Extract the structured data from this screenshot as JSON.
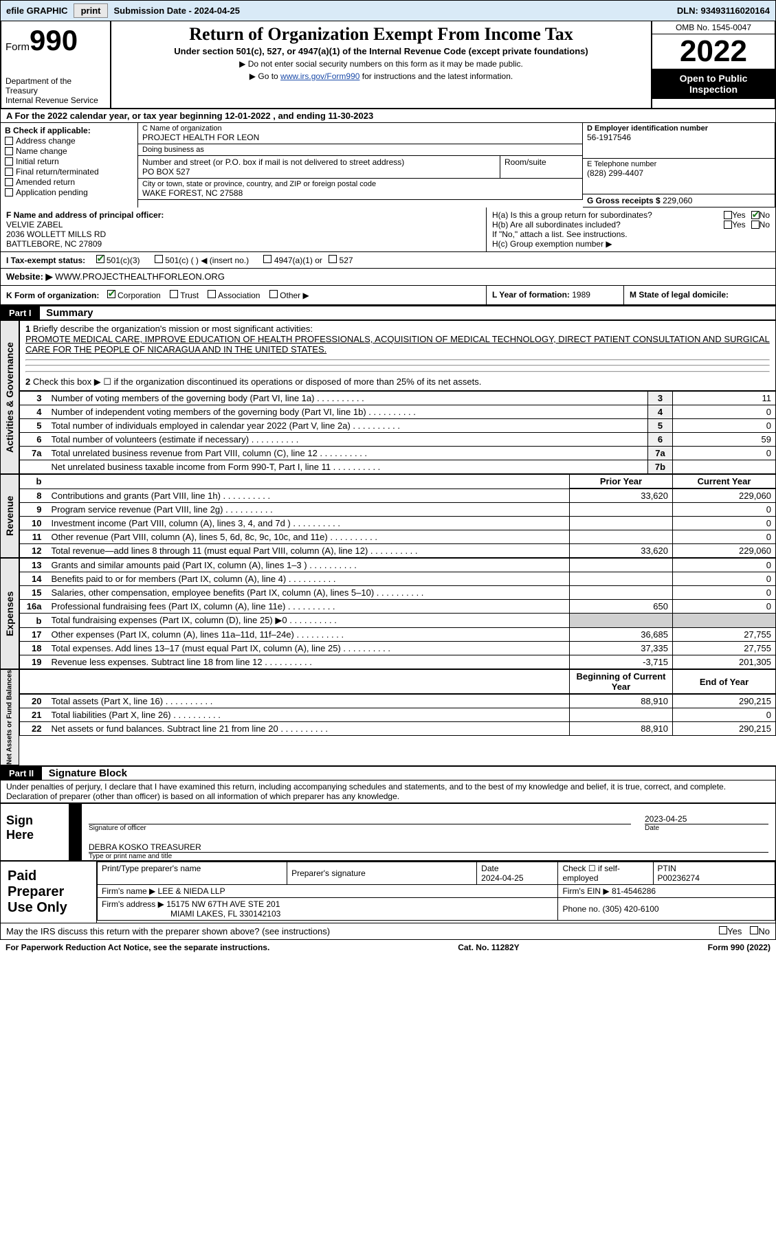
{
  "topbar": {
    "efile": "efile GRAPHIC",
    "print": "print",
    "subdate_label": "Submission Date - ",
    "subdate": "2024-04-25",
    "dln_label": "DLN: ",
    "dln": "93493116020164"
  },
  "head": {
    "form": "Form",
    "n990": "990",
    "dept": "Department of the Treasury",
    "irs": "Internal Revenue Service",
    "title": "Return of Organization Exempt From Income Tax",
    "sub": "Under section 501(c), 527, or 4947(a)(1) of the Internal Revenue Code (except private foundations)",
    "note1": "▶ Do not enter social security numbers on this form as it may be made public.",
    "note2_pre": "▶ Go to ",
    "note2_link": "www.irs.gov/Form990",
    "note2_post": " for instructions and the latest information.",
    "omb": "OMB No. 1545-0047",
    "year": "2022",
    "open": "Open to Public Inspection"
  },
  "A": {
    "text": "A  For the 2022 calendar year, or tax year beginning 12-01-2022    , and ending 11-30-2023"
  },
  "B": {
    "label": "B Check if applicable:",
    "addr": "Address change",
    "name": "Name change",
    "init": "Initial return",
    "final": "Final return/terminated",
    "amend": "Amended return",
    "app": "Application pending"
  },
  "C": {
    "name_label": "C Name of organization",
    "name": "PROJECT HEALTH FOR LEON",
    "dba_label": "Doing business as",
    "dba": "",
    "addr_label": "Number and street (or P.O. box if mail is not delivered to street address)",
    "room_label": "Room/suite",
    "addr": "PO BOX 527",
    "city_label": "City or town, state or province, country, and ZIP or foreign postal code",
    "city": "WAKE FOREST, NC  27588"
  },
  "D": {
    "label": "D Employer identification number",
    "val": "56-1917546"
  },
  "E": {
    "label": "E Telephone number",
    "val": "(828) 299-4407"
  },
  "G": {
    "label": "G Gross receipts $ ",
    "val": "229,060"
  },
  "F": {
    "label": "F  Name and address of principal officer:",
    "l1": "VELVIE ZABEL",
    "l2": "2036 WOLLETT MILLS RD",
    "l3": "BATTLEBORE, NC  27809"
  },
  "H": {
    "a": "H(a)  Is this a group return for subordinates?",
    "b": "H(b)  Are all subordinates included?",
    "bnote": "If \"No,\" attach a list. See instructions.",
    "c": "H(c)  Group exemption number ▶",
    "yes": "Yes",
    "no": "No"
  },
  "I": {
    "label": "I    Tax-exempt status:",
    "o1": "501(c)(3)",
    "o2": "501(c) (   ) ◀ (insert no.)",
    "o3": "4947(a)(1) or",
    "o4": "527"
  },
  "J": {
    "label": "Website: ▶",
    "val": "WWW.PROJECTHEALTHFORLEON.ORG"
  },
  "K": {
    "label": "K Form of organization:",
    "corp": "Corporation",
    "trust": "Trust",
    "assoc": "Association",
    "other": "Other ▶"
  },
  "L": {
    "label": "L Year of formation: ",
    "val": "1989"
  },
  "M": {
    "label": "M State of legal domicile:",
    "val": ""
  },
  "part1": {
    "bar": "Part I",
    "title": "Summary"
  },
  "summary": {
    "l1_label": "Briefly describe the organization's mission or most significant activities:",
    "l1_text": "PROMOTE MEDICAL CARE, IMPROVE EDUCATION OF HEALTH PROFESSIONALS, ACQUISITION OF MEDICAL TECHNOLOGY, DIRECT PATIENT CONSULTATION AND SURGICAL CARE FOR THE PEOPLE OF NICARAGUA AND IN THE UNITED STATES.",
    "l2": "Check this box ▶ ☐  if the organization discontinued its operations or disposed of more than 25% of its net assets.",
    "rows_act": [
      {
        "n": "3",
        "d": "Number of voting members of the governing body (Part VI, line 1a)",
        "b": "3",
        "v": "11"
      },
      {
        "n": "4",
        "d": "Number of independent voting members of the governing body (Part VI, line 1b)",
        "b": "4",
        "v": "0"
      },
      {
        "n": "5",
        "d": "Total number of individuals employed in calendar year 2022 (Part V, line 2a)",
        "b": "5",
        "v": "0"
      },
      {
        "n": "6",
        "d": "Total number of volunteers (estimate if necessary)",
        "b": "6",
        "v": "59"
      },
      {
        "n": "7a",
        "d": "Total unrelated business revenue from Part VIII, column (C), line 12",
        "b": "7a",
        "v": "0"
      },
      {
        "n": "",
        "d": "Net unrelated business taxable income from Form 990-T, Part I, line 11",
        "b": "7b",
        "v": ""
      }
    ],
    "hdr_prior": "Prior Year",
    "hdr_curr": "Current Year",
    "rows_rev": [
      {
        "n": "8",
        "d": "Contributions and grants (Part VIII, line 1h)",
        "p": "33,620",
        "c": "229,060"
      },
      {
        "n": "9",
        "d": "Program service revenue (Part VIII, line 2g)",
        "p": "",
        "c": "0"
      },
      {
        "n": "10",
        "d": "Investment income (Part VIII, column (A), lines 3, 4, and 7d )",
        "p": "",
        "c": "0"
      },
      {
        "n": "11",
        "d": "Other revenue (Part VIII, column (A), lines 5, 6d, 8c, 9c, 10c, and 11e)",
        "p": "",
        "c": "0"
      },
      {
        "n": "12",
        "d": "Total revenue—add lines 8 through 11 (must equal Part VIII, column (A), line 12)",
        "p": "33,620",
        "c": "229,060"
      }
    ],
    "rows_exp": [
      {
        "n": "13",
        "d": "Grants and similar amounts paid (Part IX, column (A), lines 1–3 )",
        "p": "",
        "c": "0"
      },
      {
        "n": "14",
        "d": "Benefits paid to or for members (Part IX, column (A), line 4)",
        "p": "",
        "c": "0"
      },
      {
        "n": "15",
        "d": "Salaries, other compensation, employee benefits (Part IX, column (A), lines 5–10)",
        "p": "",
        "c": "0"
      },
      {
        "n": "16a",
        "d": "Professional fundraising fees (Part IX, column (A), line 11e)",
        "p": "650",
        "c": "0"
      },
      {
        "n": "b",
        "d": "Total fundraising expenses (Part IX, column (D), line 25) ▶0",
        "p": "GREY",
        "c": "GREY"
      },
      {
        "n": "17",
        "d": "Other expenses (Part IX, column (A), lines 11a–11d, 11f–24e)",
        "p": "36,685",
        "c": "27,755"
      },
      {
        "n": "18",
        "d": "Total expenses. Add lines 13–17 (must equal Part IX, column (A), line 25)",
        "p": "37,335",
        "c": "27,755"
      },
      {
        "n": "19",
        "d": "Revenue less expenses. Subtract line 18 from line 12",
        "p": "-3,715",
        "c": "201,305"
      }
    ],
    "hdr_beg": "Beginning of Current Year",
    "hdr_end": "End of Year",
    "rows_net": [
      {
        "n": "20",
        "d": "Total assets (Part X, line 16)",
        "p": "88,910",
        "c": "290,215"
      },
      {
        "n": "21",
        "d": "Total liabilities (Part X, line 26)",
        "p": "",
        "c": "0"
      },
      {
        "n": "22",
        "d": "Net assets or fund balances. Subtract line 21 from line 20",
        "p": "88,910",
        "c": "290,215"
      }
    ],
    "tab_act": "Activities & Governance",
    "tab_rev": "Revenue",
    "tab_exp": "Expenses",
    "tab_net": "Net Assets or Fund Balances"
  },
  "part2": {
    "bar": "Part II",
    "title": "Signature Block"
  },
  "sig": {
    "decl": "Under penalties of perjury, I declare that I have examined this return, including accompanying schedules and statements, and to the best of my knowledge and belief, it is true, correct, and complete. Declaration of preparer (other than officer) is based on all information of which preparer has any knowledge.",
    "here": "Sign Here",
    "sigoff": "Signature of officer",
    "date": "Date",
    "sigdate": "2023-04-25",
    "name": "DEBRA KOSKO  TREASURER",
    "typed": "Type or print name and title"
  },
  "prep": {
    "title": "Paid Preparer Use Only",
    "r1c1": "Print/Type preparer's name",
    "r1c2": "Preparer's signature",
    "r1c3_l": "Date",
    "r1c3_v": "2024-04-25",
    "r1c4": "Check ☐ if self-employed",
    "r1c5_l": "PTIN",
    "r1c5_v": "P00236274",
    "firm_l": "Firm's name    ▶ ",
    "firm": "LEE & NIEDA LLP",
    "ein_l": "Firm's EIN ▶ ",
    "ein": "81-4546286",
    "addr_l": "Firm's address ▶ ",
    "addr1": "15175 NW 67TH AVE STE 201",
    "addr2": "MIAMI LAKES, FL  330142103",
    "phone_l": "Phone no. ",
    "phone": "(305) 420-6100"
  },
  "bottom": {
    "q": "May the IRS discuss this return with the preparer shown above? (see instructions)",
    "yes": "Yes",
    "no": "No",
    "pra": "For Paperwork Reduction Act Notice, see the separate instructions.",
    "cat": "Cat. No. 11282Y",
    "form": "Form 990 (2022)"
  }
}
